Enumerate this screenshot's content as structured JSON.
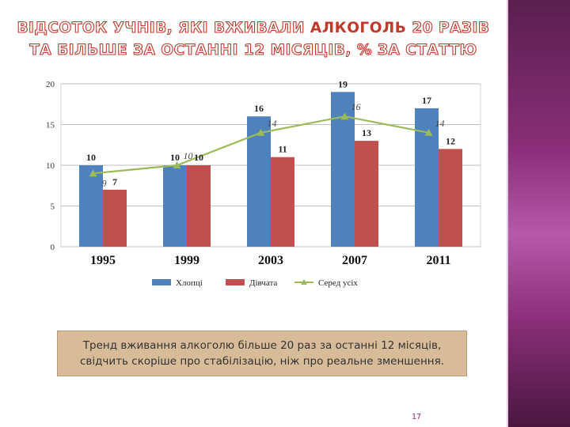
{
  "slide": {
    "title_part1": "ВІДСОТОК УЧНІВ, ЯКІ ВЖИВАЛИ ",
    "title_accent": "АЛКОГОЛЬ",
    "title_part2": " 20 РАЗІВ",
    "title_line2": "ТА БІЛЬШЕ ЗА ОСТАННІ 12 МІСЯЦІВ, % ЗА СТАТТЮ",
    "caption_line1": "Тренд вживання алкоголю більше 20 раз за останні 12 місяців,",
    "caption_line2": "свідчить скоріше про стабілізацію, ніж про реальне зменшення.",
    "page_number": "17"
  },
  "colors": {
    "boys": "#4f81bd",
    "girls": "#c0504d",
    "total": "#9bbb59",
    "accent": "#c0392b"
  },
  "chart_data": {
    "type": "bar",
    "categories": [
      "1995",
      "1999",
      "2003",
      "2007",
      "2011"
    ],
    "series": [
      {
        "name": "Хлопці",
        "type": "bar",
        "values": [
          10,
          10,
          16,
          19,
          17
        ]
      },
      {
        "name": "Дівчата",
        "type": "bar",
        "values": [
          7,
          10,
          11,
          13,
          12
        ]
      },
      {
        "name": "Серед усіх",
        "type": "line",
        "values": [
          9,
          10,
          14,
          16,
          14
        ]
      }
    ],
    "ylim": [
      0,
      20
    ],
    "yticks": [
      0,
      5,
      10,
      15,
      20
    ],
    "grid": true,
    "legend_position": "bottom"
  }
}
